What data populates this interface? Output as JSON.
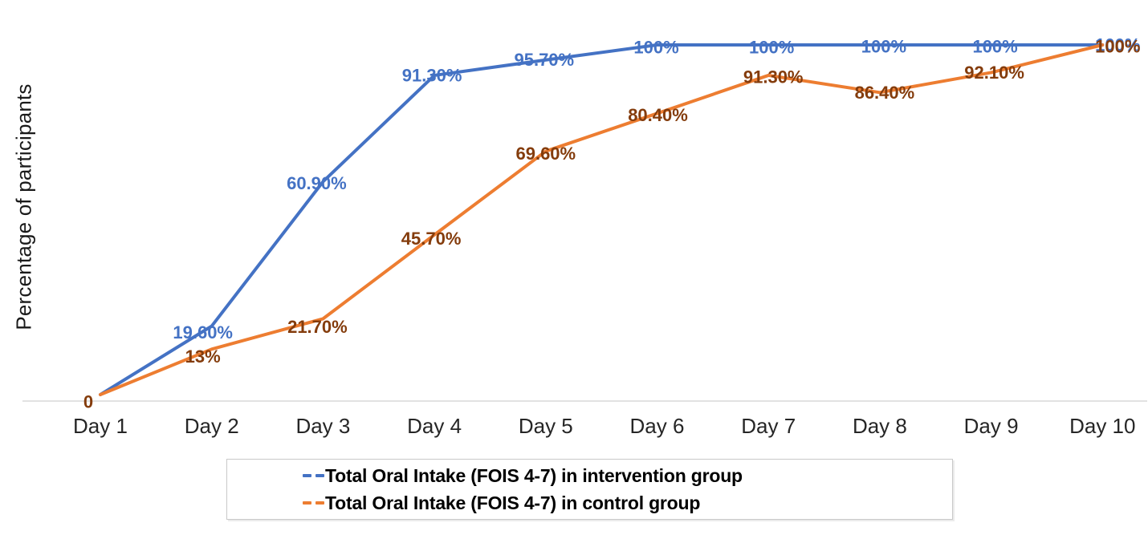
{
  "chart_data": {
    "type": "line",
    "categories": [
      "Day 1",
      "Day 2",
      "Day 3",
      "Day 4",
      "Day 5",
      "Day 6",
      "Day 7",
      "Day 8",
      "Day 9",
      "Day 10"
    ],
    "title": "",
    "xlabel": "",
    "ylabel": "Percentage of participants",
    "ylim": [
      0,
      100
    ],
    "grid": false,
    "legend_position": "bottom-center",
    "series": [
      {
        "name": "Total Oral Intake (FOIS 4-7) in intervention group",
        "color": "#4472C4",
        "label_color": "#4472C4",
        "values": [
          0,
          19.6,
          60.9,
          91.3,
          95.7,
          100,
          100,
          100,
          100,
          100
        ],
        "point_labels": [
          "",
          "19.60%",
          "60.90%",
          "91.30%",
          "95.70%",
          "100%",
          "100%",
          "100%",
          "100%",
          "100%"
        ]
      },
      {
        "name": "Total Oral Intake (FOIS 4-7) in control group",
        "color": "#ED7D31",
        "label_color": "#843C0C",
        "values": [
          0,
          13,
          21.7,
          45.7,
          69.6,
          80.4,
          91.3,
          86.4,
          92.1,
          100
        ],
        "point_labels": [
          "0",
          "13%",
          "21.70%",
          "45.70%",
          "69.60%",
          "80.40%",
          "91.30%",
          "86.40%",
          "92.10%",
          "100%"
        ]
      }
    ],
    "layout_hints": {
      "label_offsets": [
        [
          [
            0,
            0
          ],
          [
            -11,
            8
          ],
          [
            -8,
            2
          ],
          [
            -3,
            0
          ],
          [
            -2,
            0
          ],
          [
            -1,
            3
          ],
          [
            4,
            3
          ],
          [
            5,
            2
          ],
          [
            5,
            2
          ],
          [
            19,
            0
          ]
        ],
        [
          [
            -15,
            9
          ],
          [
            -11,
            9
          ],
          [
            -7,
            10
          ],
          [
            -4,
            5
          ],
          [
            0,
            3
          ],
          [
            1,
            2
          ],
          [
            6,
            2
          ],
          [
            6,
            0
          ],
          [
            4,
            0
          ],
          [
            19,
            2
          ]
        ]
      ]
    }
  },
  "colors": {
    "axis_line": "#D9D9D9",
    "axis_text": "#262626",
    "legend_border": "#C9C9C9"
  }
}
